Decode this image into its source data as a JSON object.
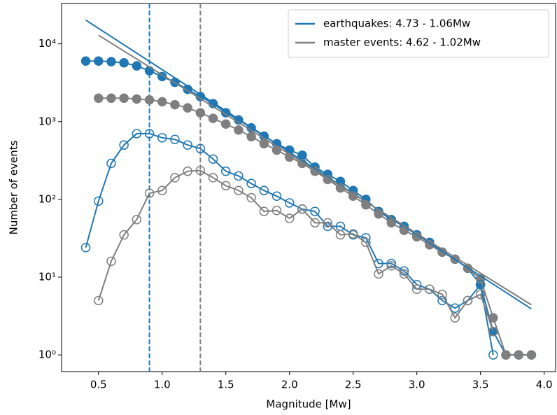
{
  "chart_data": {
    "type": "line",
    "xlabel": "Magnitude [Mw]",
    "ylabel": "Number of events",
    "log_y": true,
    "xlim": [
      0.21,
      4.09
    ],
    "ylim": [
      0.61,
      33000
    ],
    "xticks": [
      0.5,
      {
        "value": 1,
        "label": "1.0"
      },
      1.5,
      {
        "value": 2,
        "label": "2.0"
      },
      2.5,
      {
        "value": 3,
        "label": "3.0"
      },
      3.5,
      {
        "value": 4,
        "label": "4.0"
      }
    ],
    "yticks": [
      {
        "value": 1,
        "label": "10⁰"
      },
      {
        "value": 10,
        "label": "10¹"
      },
      {
        "value": 100,
        "label": "10²"
      },
      {
        "value": 1000,
        "label": "10³"
      },
      {
        "value": 10000,
        "label": "10⁴"
      }
    ],
    "legend": "upper right",
    "vlines": [
      {
        "x": 0.9,
        "color": "#1f77b4"
      },
      {
        "x": 1.3,
        "color": "#7f7f7f"
      }
    ],
    "series": [
      {
        "color": "#1f77b4",
        "marker": "filled",
        "x": [
          0.4,
          0.5,
          0.6,
          0.7,
          0.8,
          0.9,
          1.0,
          1.1,
          1.2,
          1.3,
          1.4,
          1.5,
          1.6,
          1.7,
          1.8,
          1.9,
          2.0,
          2.1,
          2.2,
          2.3,
          2.4,
          2.5,
          2.6,
          2.7,
          2.8,
          2.9,
          3.0,
          3.1,
          3.2,
          3.3,
          3.4,
          3.5,
          3.6,
          3.7,
          3.8,
          3.9
        ],
        "values": [
          6000,
          6000,
          5900,
          5700,
          5200,
          4500,
          3800,
          3200,
          2600,
          2100,
          1700,
          1300,
          1050,
          830,
          650,
          520,
          430,
          370,
          260,
          210,
          170,
          130,
          100,
          70,
          55,
          45,
          35,
          28,
          21,
          17,
          13,
          8,
          2,
          1,
          1,
          1
        ]
      },
      {
        "color": "#7f7f7f",
        "marker": "filled",
        "x": [
          0.5,
          0.6,
          0.7,
          0.8,
          0.9,
          1.0,
          1.1,
          1.2,
          1.3,
          1.4,
          1.5,
          1.6,
          1.7,
          1.8,
          1.9,
          2.0,
          2.1,
          2.2,
          2.3,
          2.4,
          2.5,
          2.6,
          2.7,
          2.8,
          2.9,
          3.0,
          3.1,
          3.2,
          3.3,
          3.4,
          3.5,
          3.6,
          3.7,
          3.8,
          3.9
        ],
        "values": [
          2000,
          2000,
          2000,
          1950,
          1900,
          1800,
          1650,
          1500,
          1300,
          1100,
          930,
          780,
          640,
          520,
          430,
          350,
          290,
          230,
          180,
          140,
          110,
          85,
          65,
          50,
          40,
          33,
          26,
          21,
          17,
          13,
          9.5,
          3,
          1,
          1,
          1
        ]
      },
      {
        "color": "#1f77b4",
        "marker": "open",
        "x": [
          0.4,
          0.5,
          0.6,
          0.7,
          0.8,
          0.9,
          1.0,
          1.1,
          1.2,
          1.3,
          1.4,
          1.5,
          1.6,
          1.7,
          1.8,
          1.9,
          2.0,
          2.1,
          2.2,
          2.3,
          2.4,
          2.5,
          2.6,
          2.7,
          2.8,
          2.9,
          3.0,
          3.1,
          3.2,
          3.3,
          3.4,
          3.5,
          3.6
        ],
        "values": [
          24,
          95,
          290,
          500,
          700,
          700,
          620,
          590,
          500,
          450,
          330,
          230,
          200,
          160,
          130,
          110,
          90,
          75,
          70,
          45,
          45,
          35,
          32,
          15,
          15,
          12,
          8,
          7,
          5,
          4,
          5,
          8,
          1
        ]
      },
      {
        "color": "#7f7f7f",
        "marker": "open",
        "x": [
          0.5,
          0.6,
          0.7,
          0.8,
          0.9,
          1.0,
          1.1,
          1.2,
          1.3,
          1.4,
          1.5,
          1.6,
          1.7,
          1.8,
          1.9,
          2.0,
          2.1,
          2.2,
          2.3,
          2.4,
          2.5,
          2.6,
          2.7,
          2.8,
          2.9,
          3.0,
          3.1,
          3.2,
          3.3,
          3.4,
          3.5,
          3.6
        ],
        "values": [
          5,
          16,
          35,
          55,
          120,
          130,
          190,
          230,
          235,
          190,
          150,
          130,
          105,
          70,
          72,
          57,
          75,
          50,
          50,
          35,
          36,
          28,
          11,
          14,
          11,
          7,
          7,
          6,
          3,
          5,
          6,
          2
        ]
      },
      {
        "name": "earthquakes: 4.73 - 1.06Mw",
        "color": "#1f77b4",
        "x": [
          0.4,
          3.9
        ],
        "values": [
          20200,
          3.9
        ]
      },
      {
        "name": "master events: 4.62 - 1.02Mw",
        "color": "#7f7f7f",
        "x": [
          0.5,
          3.9
        ],
        "values": [
          12900,
          4.4
        ]
      }
    ]
  }
}
